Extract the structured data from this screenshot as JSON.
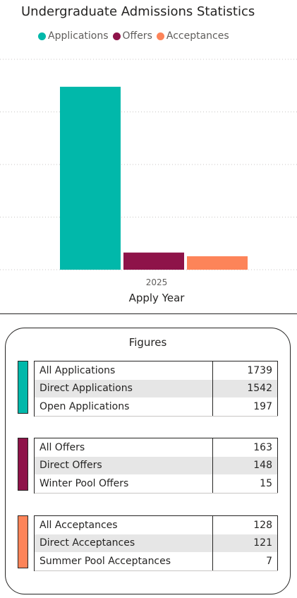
{
  "chart_data": {
    "type": "bar",
    "title": "Undergraduate Admissions Statistics",
    "xlabel": "Apply Year",
    "ylabel": "",
    "categories": [
      "2025"
    ],
    "series": [
      {
        "name": "Applications",
        "values": [
          1739
        ],
        "color": "#01B8AA"
      },
      {
        "name": "Offers",
        "values": [
          163
        ],
        "color": "#8E1349"
      },
      {
        "name": "Acceptances",
        "values": [
          128
        ],
        "color": "#FD8459"
      }
    ],
    "ylim": [
      0,
      2000
    ],
    "grid": true,
    "legend": "top"
  },
  "figures": {
    "title": "Figures",
    "groups": [
      {
        "color": "#01B8AA",
        "rows": [
          {
            "label": "All Applications",
            "value": "1739"
          },
          {
            "label": "Direct Applications",
            "value": "1542"
          },
          {
            "label": "Open Applications",
            "value": "197"
          }
        ]
      },
      {
        "color": "#8E1349",
        "rows": [
          {
            "label": "All Offers",
            "value": "163"
          },
          {
            "label": "Direct Offers",
            "value": "148"
          },
          {
            "label": "Winter Pool Offers",
            "value": "15"
          }
        ]
      },
      {
        "color": "#FD8459",
        "rows": [
          {
            "label": "All Acceptances",
            "value": "128"
          },
          {
            "label": "Direct Acceptances",
            "value": "121"
          },
          {
            "label": "Summer Pool Acceptances",
            "value": "7"
          }
        ]
      }
    ]
  }
}
